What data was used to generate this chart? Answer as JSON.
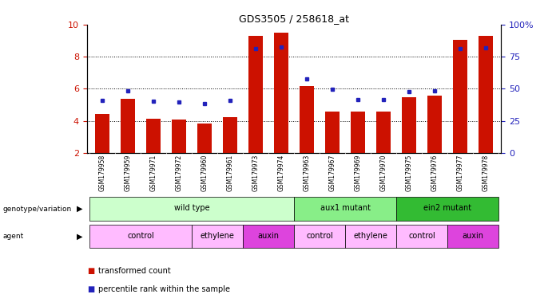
{
  "title": "GDS3505 / 258618_at",
  "samples": [
    "GSM179958",
    "GSM179959",
    "GSM179971",
    "GSM179972",
    "GSM179960",
    "GSM179961",
    "GSM179973",
    "GSM179974",
    "GSM179963",
    "GSM179967",
    "GSM179969",
    "GSM179970",
    "GSM179975",
    "GSM179976",
    "GSM179977",
    "GSM179978"
  ],
  "red_values": [
    4.45,
    5.35,
    4.15,
    4.1,
    3.85,
    4.25,
    9.3,
    9.5,
    6.15,
    4.6,
    4.6,
    4.6,
    5.45,
    5.55,
    9.05,
    9.3
  ],
  "blue_values": [
    5.25,
    5.85,
    5.2,
    5.15,
    5.1,
    5.25,
    8.5,
    8.6,
    6.6,
    5.95,
    5.3,
    5.3,
    5.8,
    5.85,
    8.5,
    8.55
  ],
  "ymin": 2,
  "ymax": 10,
  "yticks_left": [
    2,
    4,
    6,
    8,
    10
  ],
  "yticks_right_vals": [
    0,
    25,
    50,
    75,
    100
  ],
  "yticks_right_labels": [
    "0",
    "25",
    "50",
    "75",
    "100%"
  ],
  "bar_color": "#CC1100",
  "dot_color": "#2222BB",
  "genotype_groups": [
    {
      "label": "wild type",
      "start": 0,
      "end": 7,
      "color": "#ccffcc"
    },
    {
      "label": "aux1 mutant",
      "start": 8,
      "end": 11,
      "color": "#88ee88"
    },
    {
      "label": "ein2 mutant",
      "start": 12,
      "end": 15,
      "color": "#33bb33"
    }
  ],
  "agent_groups": [
    {
      "label": "control",
      "start": 0,
      "end": 3,
      "color": "#ffbbff"
    },
    {
      "label": "ethylene",
      "start": 4,
      "end": 5,
      "color": "#ffbbff"
    },
    {
      "label": "auxin",
      "start": 6,
      "end": 7,
      "color": "#dd44dd"
    },
    {
      "label": "control",
      "start": 8,
      "end": 9,
      "color": "#ffbbff"
    },
    {
      "label": "ethylene",
      "start": 10,
      "end": 11,
      "color": "#ffbbff"
    },
    {
      "label": "control",
      "start": 12,
      "end": 13,
      "color": "#ffbbff"
    },
    {
      "label": "auxin",
      "start": 14,
      "end": 15,
      "color": "#dd44dd"
    }
  ],
  "legend_red_label": "transformed count",
  "legend_blue_label": "percentile rank within the sample",
  "sample_bg_color": "#cccccc",
  "left_label_geno": "genotype/variation",
  "left_label_agent": "agent"
}
